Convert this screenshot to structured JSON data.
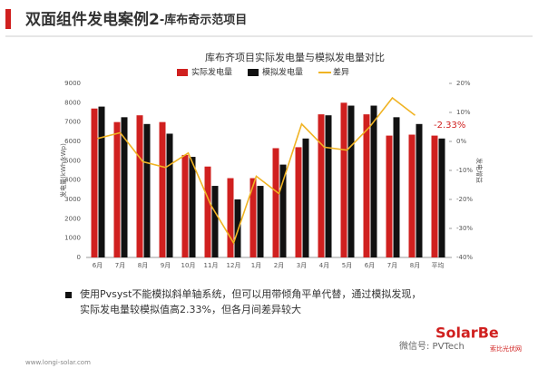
{
  "header": {
    "title": "双面组件发电案例2",
    "subtitle": "-库布奇示范项目"
  },
  "chart_data": {
    "type": "bar",
    "title": "库布齐项目实际发电量与模拟发电量对比",
    "y_label": "发电量(kWh/kWp)",
    "y2_label": "发电增益",
    "categories": [
      "6月",
      "7月",
      "8月",
      "9月",
      "10月",
      "11月",
      "12月",
      "1月",
      "2月",
      "3月",
      "4月",
      "5月",
      "6月",
      "7月",
      "8月",
      "平均"
    ],
    "series": [
      {
        "name": "实际发电量",
        "color": "#d0201f",
        "values": [
          7700,
          7000,
          7350,
          7000,
          5300,
          4700,
          4100,
          4100,
          5650,
          5700,
          7400,
          8000,
          7400,
          6300,
          6350,
          6300
        ]
      },
      {
        "name": "模拟发电量",
        "color": "#111111",
        "values": [
          7800,
          7250,
          6900,
          6400,
          5200,
          3700,
          3000,
          3700,
          4800,
          6150,
          7350,
          7850,
          7850,
          7250,
          6900,
          6150
        ]
      },
      {
        "name": "差异",
        "color": "#f0b323",
        "type": "line",
        "axis": "y2",
        "values": [
          1,
          3,
          -7,
          -9,
          -4,
          -22,
          -35,
          -12,
          -18,
          6,
          -2,
          -3,
          5,
          15,
          9,
          null
        ]
      }
    ],
    "ylim": [
      0,
      9000
    ],
    "yticks": [
      0,
      1000,
      2000,
      3000,
      4000,
      5000,
      6000,
      7000,
      8000,
      9000
    ],
    "y2lim": [
      -40,
      20
    ],
    "y2ticks": [
      {
        "value": -40,
        "label": "-40%"
      },
      {
        "value": -30,
        "label": "-30%"
      },
      {
        "value": -20,
        "label": "-20%"
      },
      {
        "value": -10,
        "label": "-10%"
      },
      {
        "value": 0,
        "label": "0%"
      },
      {
        "value": 10,
        "label": "10%"
      },
      {
        "value": 20,
        "label": "20%"
      }
    ],
    "annotation": "-2.33%",
    "legend": "top"
  },
  "bullet": [
    "使用Pvsyst不能模拟斜单轴系统，但可以用带倾角平单代替，通过模拟发现，",
    "实际发电量较模拟值高2.33%，但各月间差异较大"
  ],
  "footer": "www.longi-solar.com",
  "watermark": [
    "微信号: PVTech",
    "SolarBe",
    "索比光伏网"
  ]
}
